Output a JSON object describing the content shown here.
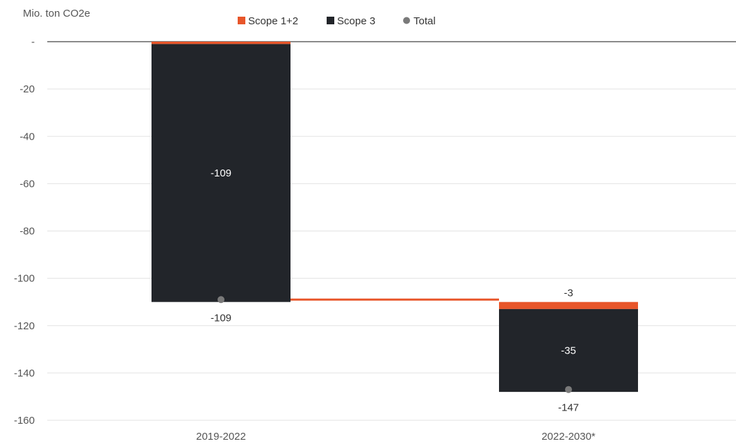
{
  "chart_data": {
    "type": "bar",
    "subtype": "waterfall",
    "unit_label": "Mio. ton CO2e",
    "categories": [
      "2019-2022",
      "2022-2030*"
    ],
    "series": [
      {
        "name": "Scope 1+2",
        "values": [
          -1,
          -3
        ],
        "color": "#e8562a",
        "labels": [
          "",
          "-3"
        ]
      },
      {
        "name": "Scope 3",
        "values": [
          -109,
          -35
        ],
        "color": "#22252a",
        "labels": [
          "-109",
          "-35"
        ]
      },
      {
        "name": "Total",
        "values": [
          -109,
          -147
        ],
        "color": "#7a7a7a",
        "labels": [
          "-109",
          "-147"
        ]
      }
    ],
    "y_ticks": [
      {
        "value": 0,
        "label": "-"
      },
      {
        "value": -20,
        "label": "-20"
      },
      {
        "value": -40,
        "label": "-40"
      },
      {
        "value": -60,
        "label": "-60"
      },
      {
        "value": -80,
        "label": "-80"
      },
      {
        "value": -100,
        "label": "-100"
      },
      {
        "value": -120,
        "label": "-120"
      },
      {
        "value": -140,
        "label": "-140"
      },
      {
        "value": -160,
        "label": "-160"
      }
    ],
    "ylim": [
      -160,
      0
    ],
    "legend_position": "top-center",
    "grid": true,
    "connector_color": "#e8562a"
  }
}
